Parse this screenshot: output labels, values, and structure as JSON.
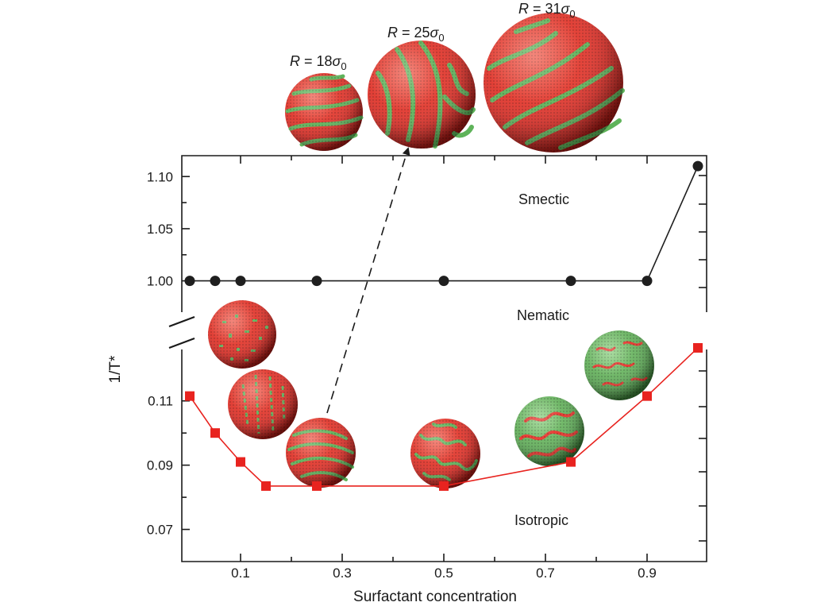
{
  "chart_data": {
    "type": "line",
    "xlabel": "Surfactant concentration",
    "ylabel": "1/T*",
    "x_ticks": [
      "0.1",
      "0.3",
      "0.5",
      "0.7",
      "0.9"
    ],
    "xlim": [
      0,
      1
    ],
    "panels": [
      {
        "name": "upper",
        "ylim": [
          0.97,
          1.12
        ],
        "y_ticks": [
          "1.00",
          "1.05",
          "1.10"
        ],
        "series": [
          {
            "marker": "circle",
            "color": "#1f1f1f",
            "x": [
              0,
              0.05,
              0.1,
              0.25,
              0.5,
              0.75,
              0.9,
              1.0
            ],
            "y": [
              1.0,
              1.0,
              1.0,
              1.0,
              1.0,
              1.0,
              1.0,
              1.11
            ]
          }
        ],
        "regions": [
          "Smectic",
          "Nematic"
        ]
      },
      {
        "name": "lower",
        "ylim": [
          0.06,
          0.126
        ],
        "y_ticks": [
          "0.07",
          "0.09",
          "0.11"
        ],
        "series": [
          {
            "marker": "square",
            "color": "#e8231f",
            "x": [
              0,
              0.05,
              0.1,
              0.15,
              0.25,
              0.5,
              0.75,
              0.9,
              1.0
            ],
            "y": [
              0.1115,
              0.1,
              0.091,
              0.0835,
              0.0835,
              0.0835,
              0.091,
              0.1115,
              0.1265
            ]
          }
        ],
        "regions": [
          "Isotropic"
        ]
      }
    ],
    "radius_labels": [
      {
        "prefix": "R",
        "value": " = 18",
        "sym": "σ",
        "sub": "0"
      },
      {
        "prefix": "R",
        "value": " = 25",
        "sym": "σ",
        "sub": "0"
      },
      {
        "prefix": "R",
        "value": " = 31",
        "sym": "σ",
        "sub": "0"
      }
    ],
    "grid": false
  },
  "colors": {
    "sphere_red": "#e8322a",
    "sphere_green": "#5fb35a",
    "marker_black": "#1f1f1f",
    "marker_red": "#e8231f"
  }
}
